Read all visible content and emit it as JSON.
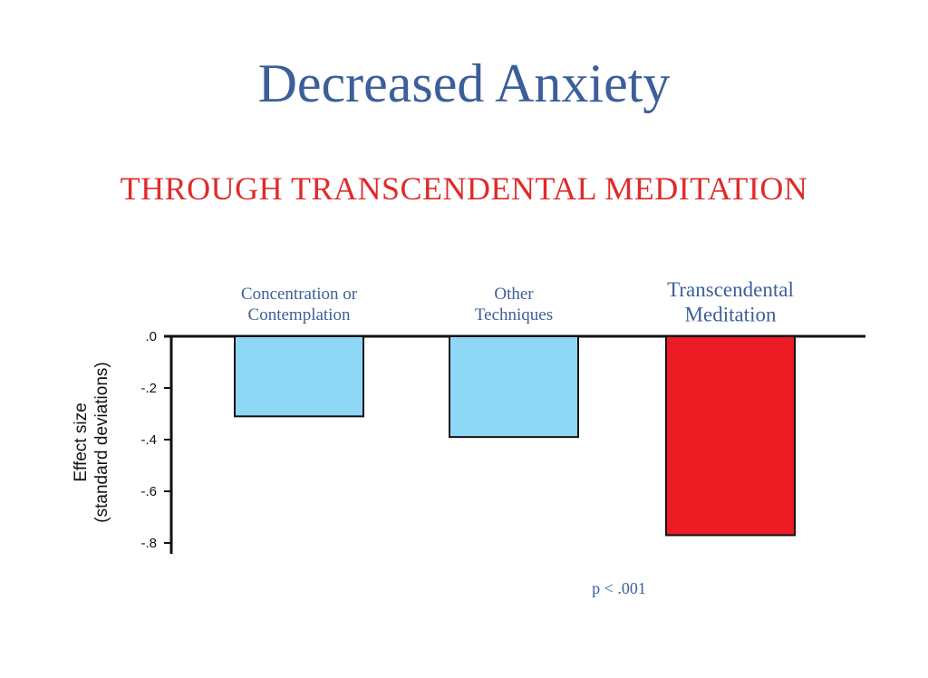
{
  "title": "Decreased Anxiety",
  "subtitle": "THROUGH TRANSCENDENTAL MEDITATION",
  "note": "p < .001",
  "chart_data": {
    "type": "bar",
    "categories": [
      [
        "Concentration or",
        "Contemplation"
      ],
      [
        "Other",
        "Techniques"
      ],
      [
        "Transcendental",
        "Meditation"
      ]
    ],
    "values": [
      -0.31,
      -0.39,
      -0.77
    ],
    "bar_colors": [
      "#8fd8f5",
      "#8fd8f5",
      "#ed1c24"
    ],
    "ylabel": [
      "Effect size",
      "(standard deviations)"
    ],
    "yticks": [
      {
        "value": 0,
        "label": ".0"
      },
      {
        "value": -0.2,
        "label": "-.2"
      },
      {
        "value": -0.4,
        "label": "-.4"
      },
      {
        "value": -0.6,
        "label": "-.6"
      },
      {
        "value": -0.8,
        "label": "-.8"
      }
    ],
    "ylim": [
      -0.8,
      0
    ],
    "grid": false
  }
}
